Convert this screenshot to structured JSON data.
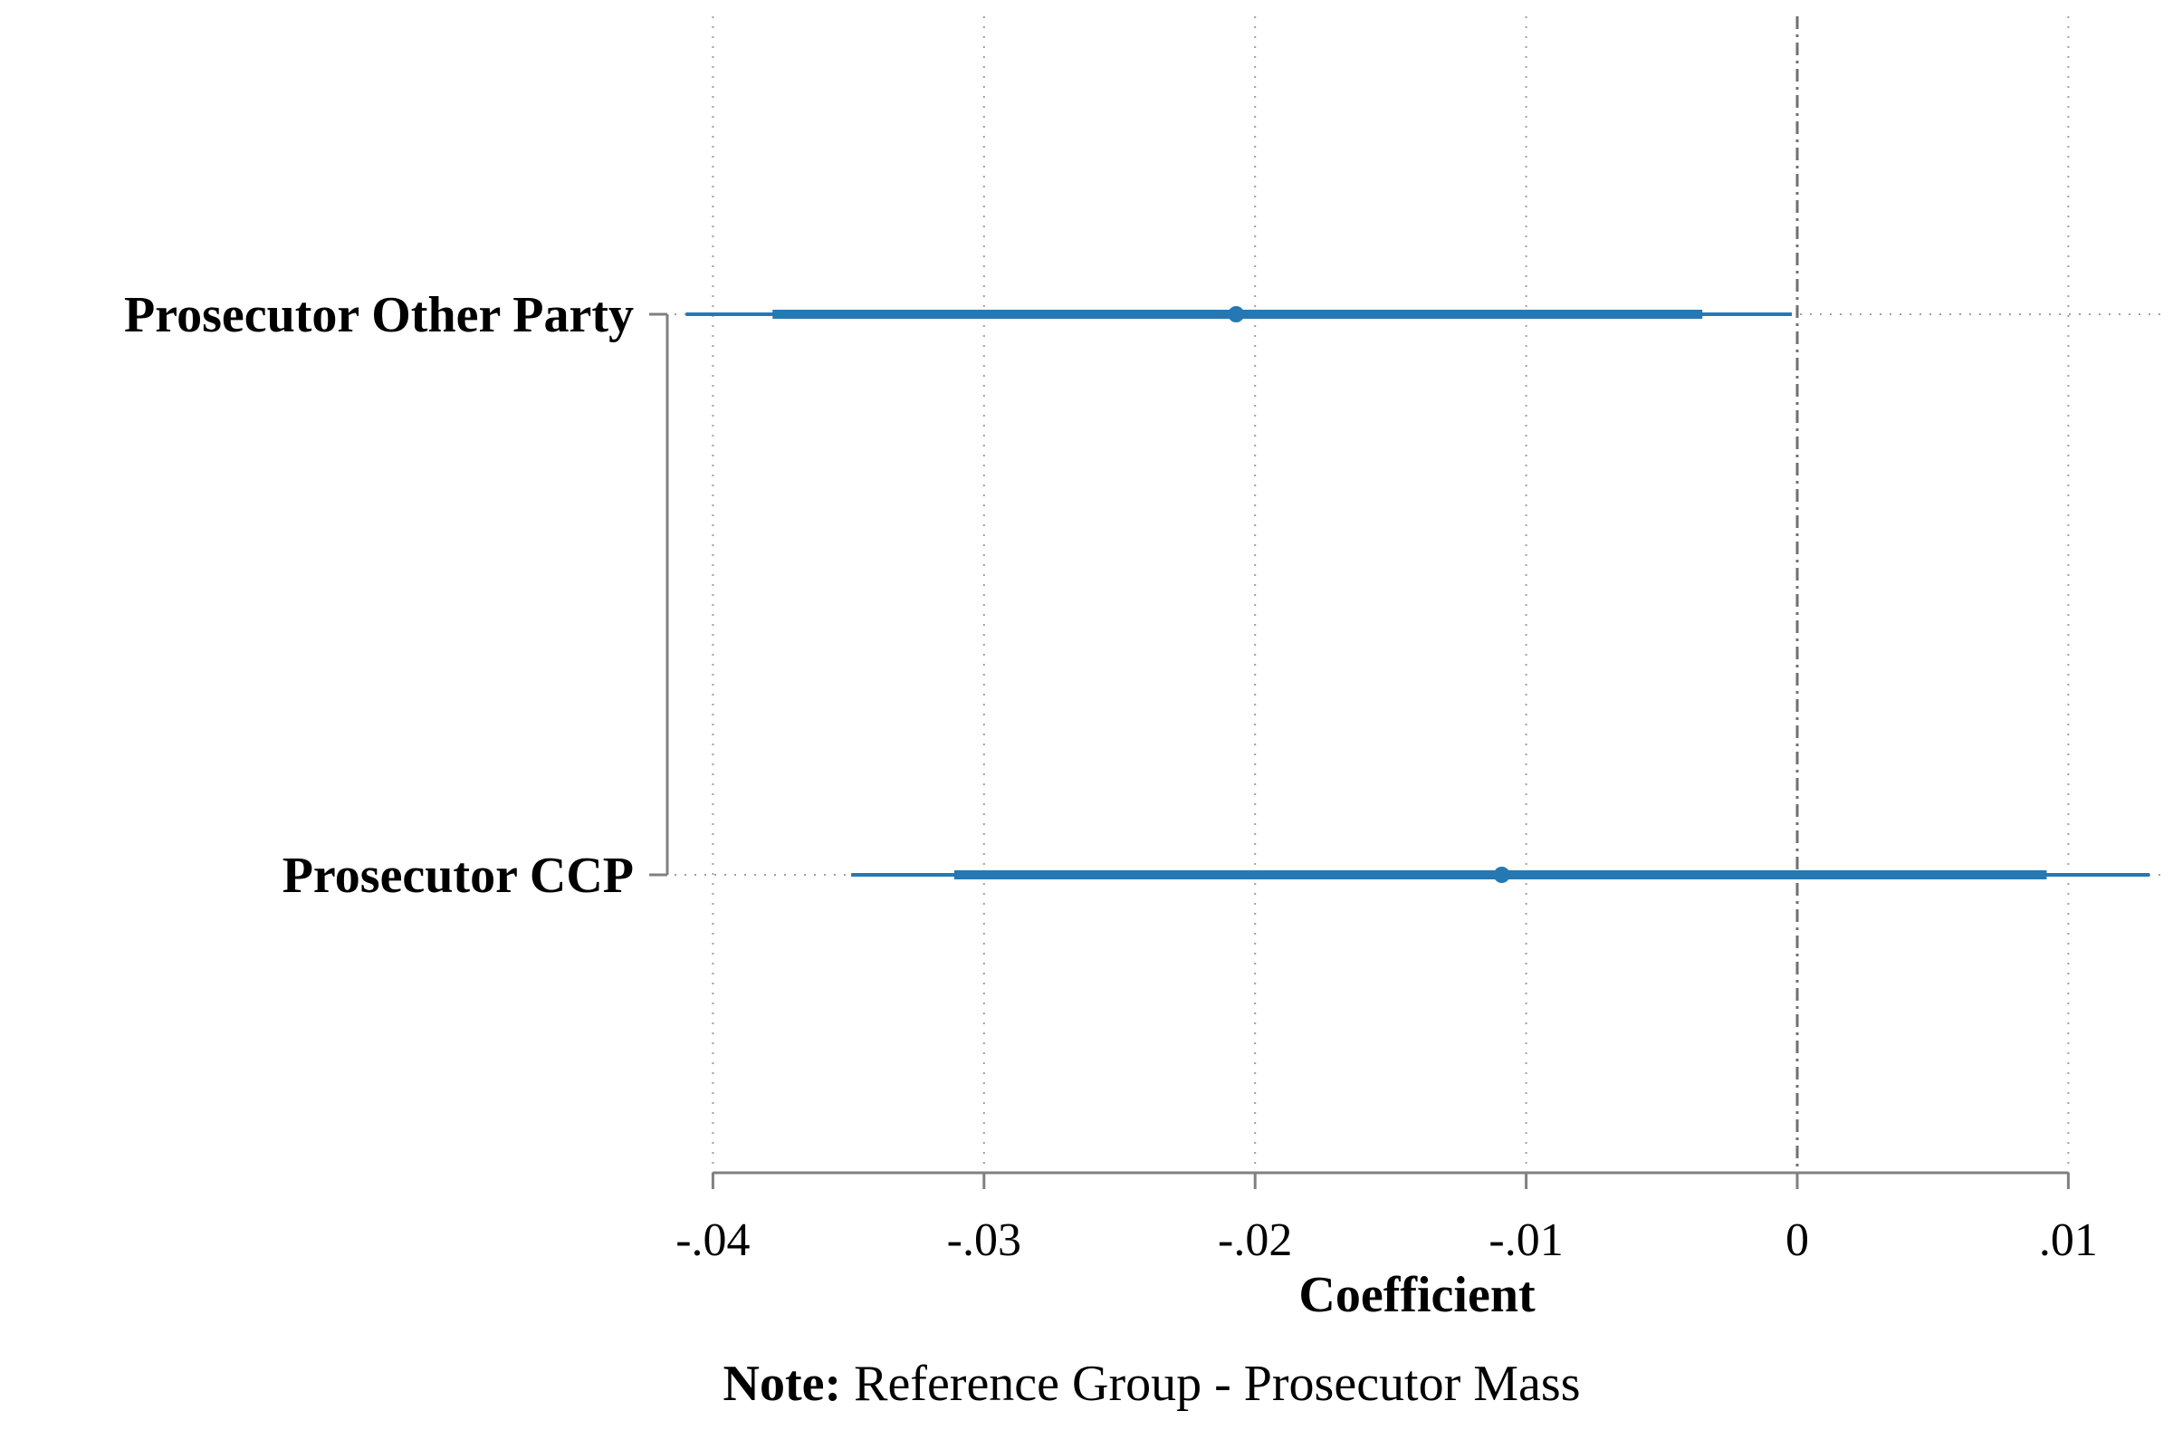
{
  "chart_data": {
    "type": "coefficient-plot",
    "xlabel": "Coefficient",
    "xlim": [
      -0.041,
      0.0135
    ],
    "xticks": [
      {
        "value": -0.04,
        "label": "-.04"
      },
      {
        "value": -0.03,
        "label": "-.03"
      },
      {
        "value": -0.02,
        "label": "-.02"
      },
      {
        "value": -0.01,
        "label": "-.01"
      },
      {
        "value": 0,
        "label": "0"
      },
      {
        "value": 0.01,
        "label": ".01"
      }
    ],
    "reference_line": 0,
    "grid": true,
    "categories": [
      {
        "label": "Prosecutor Other Party",
        "estimate": -0.0207,
        "ci_inner": [
          -0.0378,
          -0.0035
        ],
        "ci_outer": [
          -0.041,
          -0.0002
        ]
      },
      {
        "label": "Prosecutor  CCP",
        "estimate": -0.0109,
        "ci_inner": [
          -0.0311,
          0.0092
        ],
        "ci_outer": [
          -0.0349,
          0.013
        ]
      }
    ],
    "note_bold": "Note:",
    "note_text": " Reference Group - Prosecutor  Mass",
    "colors": {
      "series": "#2678b2",
      "axis": "#808080",
      "grid": "#a0a0a0",
      "refline": "#707070"
    }
  }
}
